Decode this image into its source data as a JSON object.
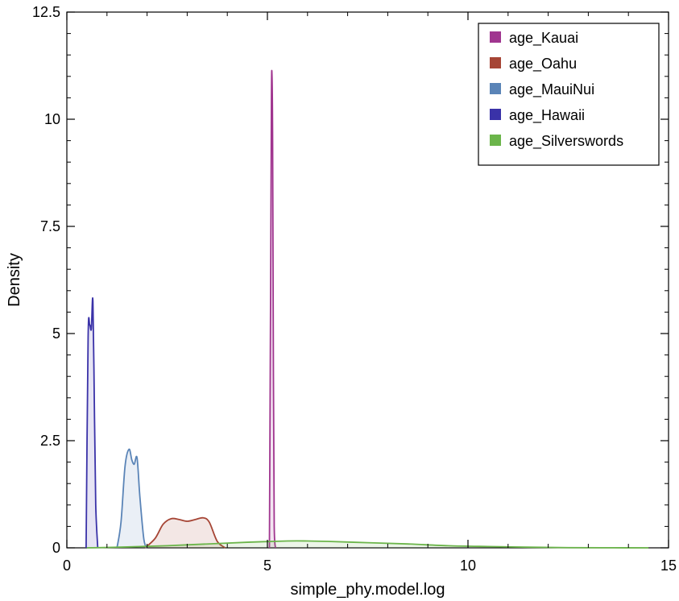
{
  "chart_data": {
    "type": "area",
    "xlabel": "simple_phy.model.log",
    "ylabel": "Density",
    "xlim": [
      0,
      15
    ],
    "ylim": [
      0,
      12.5
    ],
    "xticks": [
      0,
      5,
      10,
      15
    ],
    "xtick_labels": [
      "0",
      "5",
      "10",
      "15"
    ],
    "yticks": [
      0,
      2.5,
      5,
      7.5,
      10,
      12.5
    ],
    "ytick_labels": [
      "0",
      "2.5",
      "5",
      "7.5",
      "10",
      "12.5"
    ],
    "grid": false,
    "legend_position": "top-right",
    "series": [
      {
        "name": "age_Kauai",
        "color": "#a0358f",
        "x": [
          5.05,
          5.08,
          5.1,
          5.115,
          5.13,
          5.15,
          5.17,
          5.2
        ],
        "y": [
          0,
          6.0,
          10.5,
          11.0,
          9.5,
          4.0,
          0.5,
          0
        ]
      },
      {
        "name": "age_Oahu",
        "color": "#a64535",
        "x": [
          1.95,
          2.2,
          2.4,
          2.6,
          2.8,
          3.0,
          3.2,
          3.4,
          3.55,
          3.75,
          3.95
        ],
        "y": [
          0,
          0.22,
          0.55,
          0.68,
          0.66,
          0.62,
          0.66,
          0.7,
          0.6,
          0.15,
          0
        ]
      },
      {
        "name": "age_MauiNui",
        "color": "#5a84b7",
        "x": [
          1.25,
          1.35,
          1.45,
          1.55,
          1.62,
          1.68,
          1.75,
          1.82,
          1.92,
          2.0
        ],
        "y": [
          0,
          0.6,
          1.9,
          2.3,
          2.05,
          1.95,
          2.1,
          1.2,
          0.2,
          0
        ]
      },
      {
        "name": "age_Hawaii",
        "color": "#3a32a8",
        "x": [
          0.48,
          0.53,
          0.57,
          0.61,
          0.65,
          0.69,
          0.72,
          0.77
        ],
        "y": [
          0,
          4.9,
          5.2,
          5.1,
          5.75,
          3.0,
          1.0,
          0
        ]
      },
      {
        "name": "age_Silverswords",
        "color": "#6bb54a",
        "x": [
          0.5,
          1.5,
          2.5,
          3.5,
          4.5,
          5.5,
          6.0,
          6.5,
          7.5,
          8.5,
          9.5,
          10.5,
          11.5,
          12.5,
          13.5,
          14.5
        ],
        "y": [
          0,
          0.02,
          0.05,
          0.09,
          0.13,
          0.16,
          0.16,
          0.15,
          0.12,
          0.09,
          0.05,
          0.03,
          0.015,
          0.005,
          0.002,
          0
        ]
      }
    ]
  }
}
